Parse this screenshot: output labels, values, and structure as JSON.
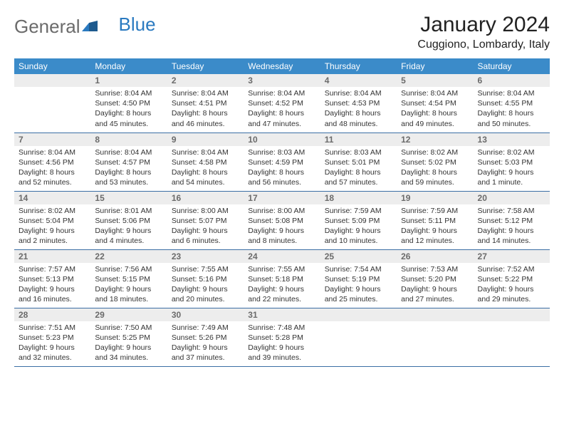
{
  "logo": {
    "text1": "General",
    "text2": "Blue"
  },
  "title": "January 2024",
  "location": "Cuggiono, Lombardy, Italy",
  "colors": {
    "header_bg": "#3b8bc9",
    "header_text": "#ffffff",
    "daynum_bg": "#ededed",
    "daynum_text": "#6b6b6b",
    "border": "#3b6fa5",
    "logo_gray": "#6b6b6b",
    "logo_blue": "#2a7ac0"
  },
  "weekdays": [
    "Sunday",
    "Monday",
    "Tuesday",
    "Wednesday",
    "Thursday",
    "Friday",
    "Saturday"
  ],
  "weeks": [
    [
      null,
      {
        "n": "1",
        "sr": "Sunrise: 8:04 AM",
        "ss": "Sunset: 4:50 PM",
        "d1": "Daylight: 8 hours",
        "d2": "and 45 minutes."
      },
      {
        "n": "2",
        "sr": "Sunrise: 8:04 AM",
        "ss": "Sunset: 4:51 PM",
        "d1": "Daylight: 8 hours",
        "d2": "and 46 minutes."
      },
      {
        "n": "3",
        "sr": "Sunrise: 8:04 AM",
        "ss": "Sunset: 4:52 PM",
        "d1": "Daylight: 8 hours",
        "d2": "and 47 minutes."
      },
      {
        "n": "4",
        "sr": "Sunrise: 8:04 AM",
        "ss": "Sunset: 4:53 PM",
        "d1": "Daylight: 8 hours",
        "d2": "and 48 minutes."
      },
      {
        "n": "5",
        "sr": "Sunrise: 8:04 AM",
        "ss": "Sunset: 4:54 PM",
        "d1": "Daylight: 8 hours",
        "d2": "and 49 minutes."
      },
      {
        "n": "6",
        "sr": "Sunrise: 8:04 AM",
        "ss": "Sunset: 4:55 PM",
        "d1": "Daylight: 8 hours",
        "d2": "and 50 minutes."
      }
    ],
    [
      {
        "n": "7",
        "sr": "Sunrise: 8:04 AM",
        "ss": "Sunset: 4:56 PM",
        "d1": "Daylight: 8 hours",
        "d2": "and 52 minutes."
      },
      {
        "n": "8",
        "sr": "Sunrise: 8:04 AM",
        "ss": "Sunset: 4:57 PM",
        "d1": "Daylight: 8 hours",
        "d2": "and 53 minutes."
      },
      {
        "n": "9",
        "sr": "Sunrise: 8:04 AM",
        "ss": "Sunset: 4:58 PM",
        "d1": "Daylight: 8 hours",
        "d2": "and 54 minutes."
      },
      {
        "n": "10",
        "sr": "Sunrise: 8:03 AM",
        "ss": "Sunset: 4:59 PM",
        "d1": "Daylight: 8 hours",
        "d2": "and 56 minutes."
      },
      {
        "n": "11",
        "sr": "Sunrise: 8:03 AM",
        "ss": "Sunset: 5:01 PM",
        "d1": "Daylight: 8 hours",
        "d2": "and 57 minutes."
      },
      {
        "n": "12",
        "sr": "Sunrise: 8:02 AM",
        "ss": "Sunset: 5:02 PM",
        "d1": "Daylight: 8 hours",
        "d2": "and 59 minutes."
      },
      {
        "n": "13",
        "sr": "Sunrise: 8:02 AM",
        "ss": "Sunset: 5:03 PM",
        "d1": "Daylight: 9 hours",
        "d2": "and 1 minute."
      }
    ],
    [
      {
        "n": "14",
        "sr": "Sunrise: 8:02 AM",
        "ss": "Sunset: 5:04 PM",
        "d1": "Daylight: 9 hours",
        "d2": "and 2 minutes."
      },
      {
        "n": "15",
        "sr": "Sunrise: 8:01 AM",
        "ss": "Sunset: 5:06 PM",
        "d1": "Daylight: 9 hours",
        "d2": "and 4 minutes."
      },
      {
        "n": "16",
        "sr": "Sunrise: 8:00 AM",
        "ss": "Sunset: 5:07 PM",
        "d1": "Daylight: 9 hours",
        "d2": "and 6 minutes."
      },
      {
        "n": "17",
        "sr": "Sunrise: 8:00 AM",
        "ss": "Sunset: 5:08 PM",
        "d1": "Daylight: 9 hours",
        "d2": "and 8 minutes."
      },
      {
        "n": "18",
        "sr": "Sunrise: 7:59 AM",
        "ss": "Sunset: 5:09 PM",
        "d1": "Daylight: 9 hours",
        "d2": "and 10 minutes."
      },
      {
        "n": "19",
        "sr": "Sunrise: 7:59 AM",
        "ss": "Sunset: 5:11 PM",
        "d1": "Daylight: 9 hours",
        "d2": "and 12 minutes."
      },
      {
        "n": "20",
        "sr": "Sunrise: 7:58 AM",
        "ss": "Sunset: 5:12 PM",
        "d1": "Daylight: 9 hours",
        "d2": "and 14 minutes."
      }
    ],
    [
      {
        "n": "21",
        "sr": "Sunrise: 7:57 AM",
        "ss": "Sunset: 5:13 PM",
        "d1": "Daylight: 9 hours",
        "d2": "and 16 minutes."
      },
      {
        "n": "22",
        "sr": "Sunrise: 7:56 AM",
        "ss": "Sunset: 5:15 PM",
        "d1": "Daylight: 9 hours",
        "d2": "and 18 minutes."
      },
      {
        "n": "23",
        "sr": "Sunrise: 7:55 AM",
        "ss": "Sunset: 5:16 PM",
        "d1": "Daylight: 9 hours",
        "d2": "and 20 minutes."
      },
      {
        "n": "24",
        "sr": "Sunrise: 7:55 AM",
        "ss": "Sunset: 5:18 PM",
        "d1": "Daylight: 9 hours",
        "d2": "and 22 minutes."
      },
      {
        "n": "25",
        "sr": "Sunrise: 7:54 AM",
        "ss": "Sunset: 5:19 PM",
        "d1": "Daylight: 9 hours",
        "d2": "and 25 minutes."
      },
      {
        "n": "26",
        "sr": "Sunrise: 7:53 AM",
        "ss": "Sunset: 5:20 PM",
        "d1": "Daylight: 9 hours",
        "d2": "and 27 minutes."
      },
      {
        "n": "27",
        "sr": "Sunrise: 7:52 AM",
        "ss": "Sunset: 5:22 PM",
        "d1": "Daylight: 9 hours",
        "d2": "and 29 minutes."
      }
    ],
    [
      {
        "n": "28",
        "sr": "Sunrise: 7:51 AM",
        "ss": "Sunset: 5:23 PM",
        "d1": "Daylight: 9 hours",
        "d2": "and 32 minutes."
      },
      {
        "n": "29",
        "sr": "Sunrise: 7:50 AM",
        "ss": "Sunset: 5:25 PM",
        "d1": "Daylight: 9 hours",
        "d2": "and 34 minutes."
      },
      {
        "n": "30",
        "sr": "Sunrise: 7:49 AM",
        "ss": "Sunset: 5:26 PM",
        "d1": "Daylight: 9 hours",
        "d2": "and 37 minutes."
      },
      {
        "n": "31",
        "sr": "Sunrise: 7:48 AM",
        "ss": "Sunset: 5:28 PM",
        "d1": "Daylight: 9 hours",
        "d2": "and 39 minutes."
      },
      null,
      null,
      null
    ]
  ]
}
